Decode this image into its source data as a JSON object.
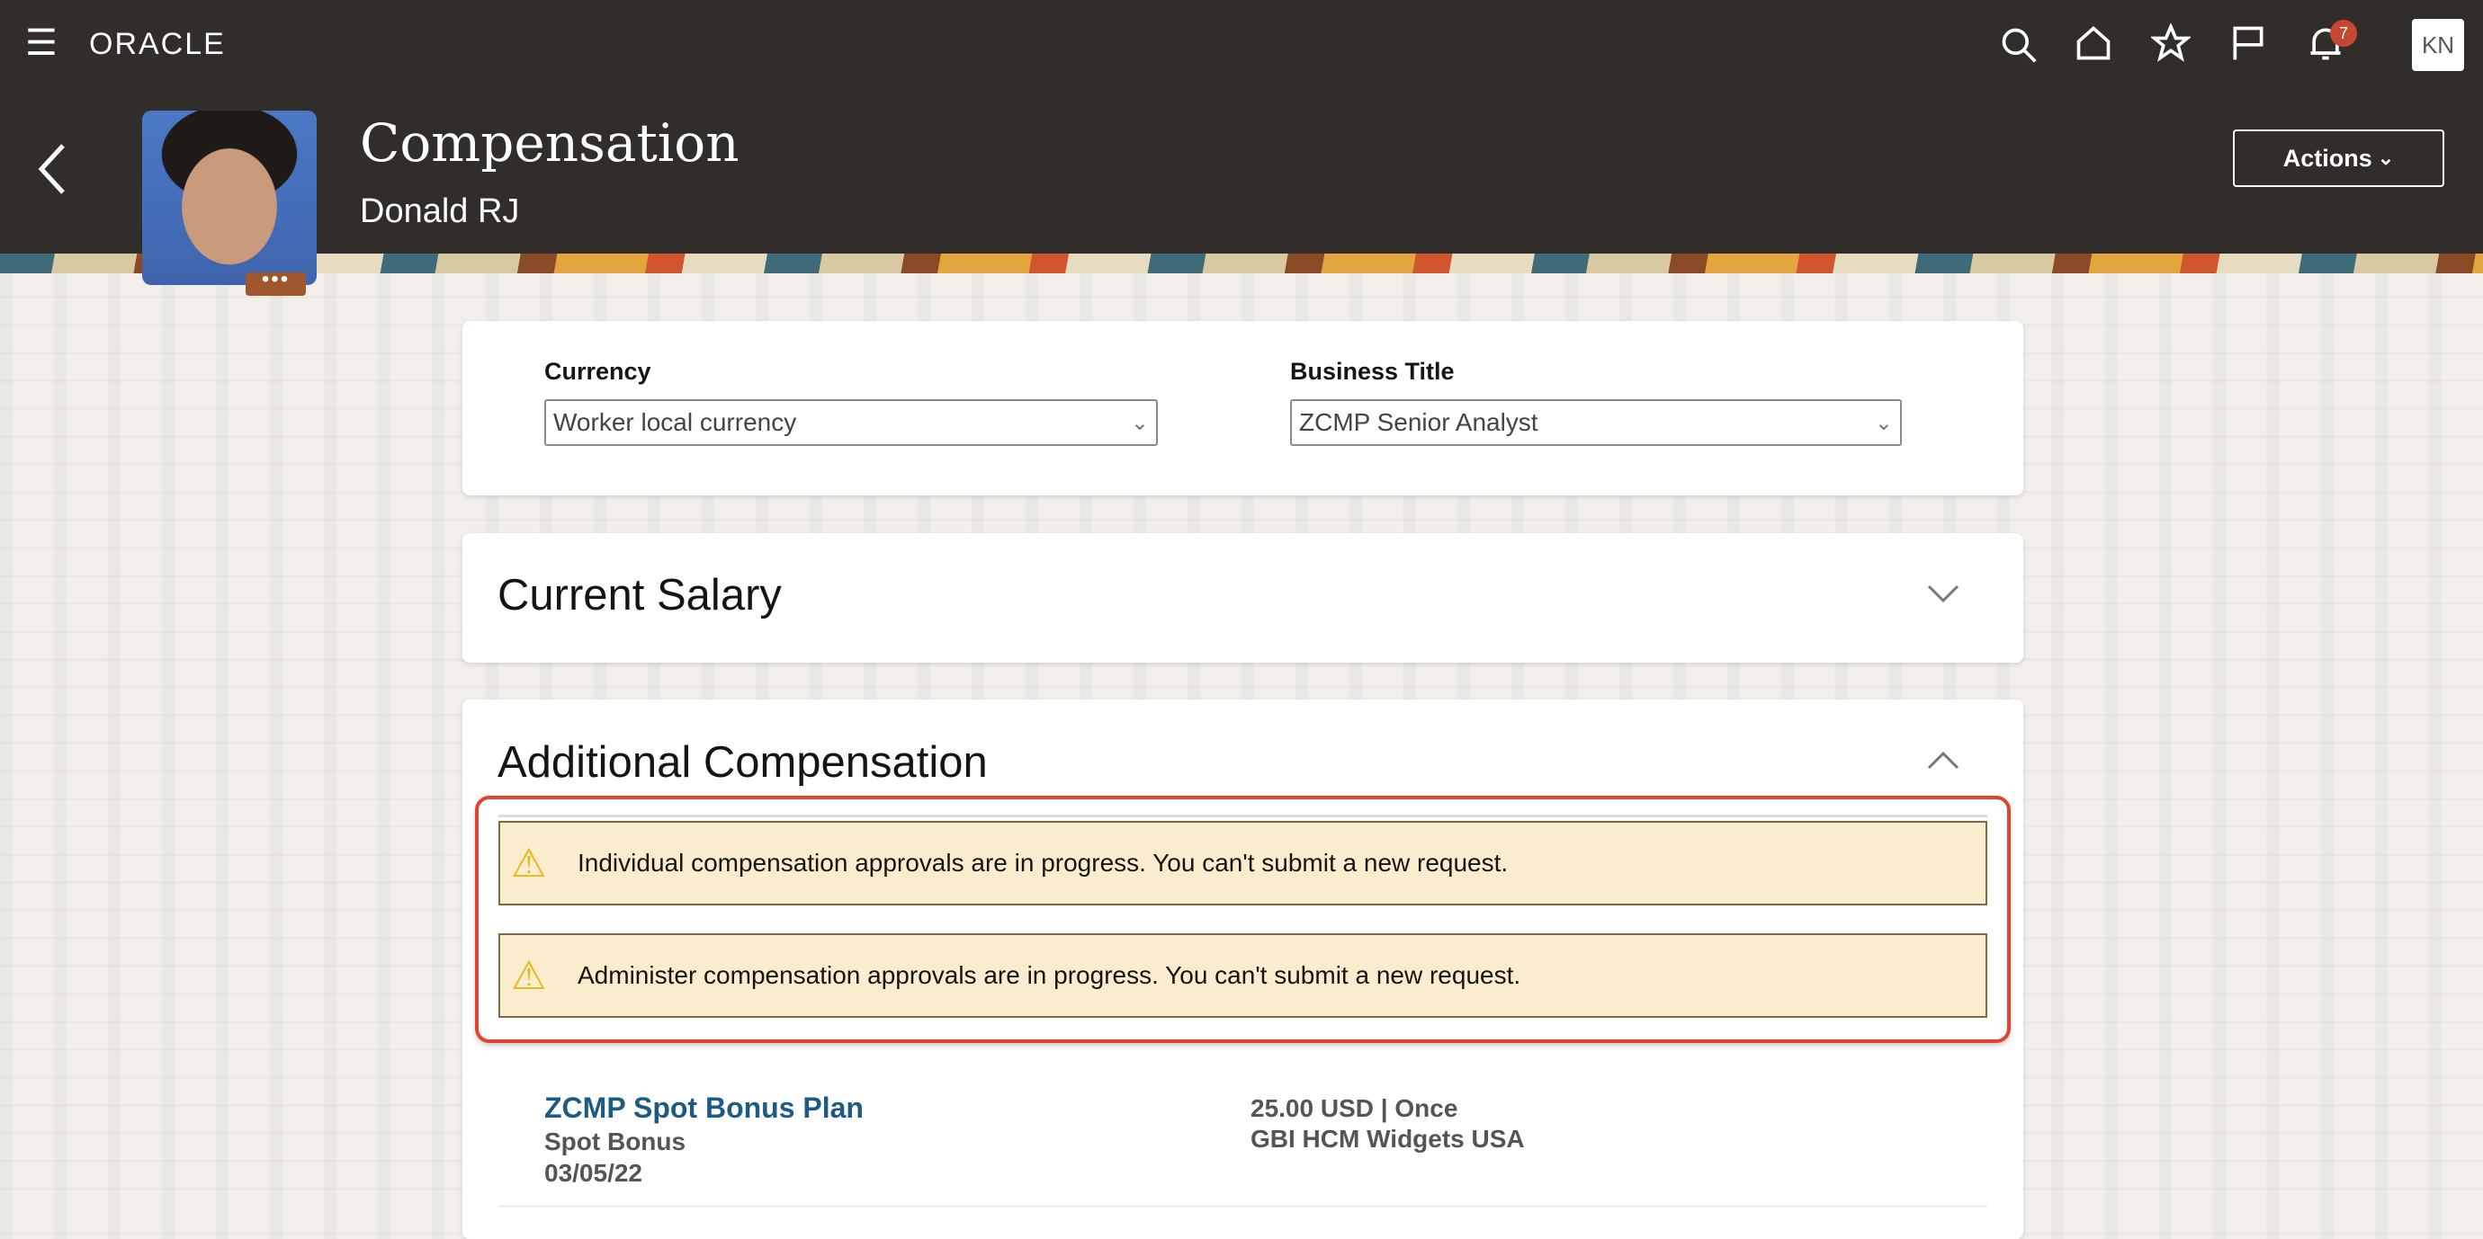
{
  "header": {
    "logo": "ORACLE",
    "title": "Compensation",
    "subtitle": "Donald RJ",
    "actions_label": "Actions",
    "notification_count": "7",
    "user_initials": "KN",
    "more_label": "•••"
  },
  "filters": {
    "currency_label": "Currency",
    "currency_value": "Worker local currency",
    "business_title_label": "Business Title",
    "business_title_value": "ZCMP Senior Analyst"
  },
  "sections": {
    "current_salary": "Current Salary",
    "additional_compensation": "Additional Compensation"
  },
  "warnings": [
    "Individual compensation approvals are in progress. You can't submit a new request.",
    "Administer compensation approvals are in progress. You can't submit a new request."
  ],
  "plans": [
    {
      "name": "ZCMP Spot Bonus Plan",
      "type": "Spot Bonus",
      "date": "03/05/22",
      "amount": "25.00 USD | Once",
      "legal_employer": "GBI HCM Widgets USA"
    }
  ],
  "colors": {
    "header": "#312d2a",
    "link": "#1d5b84",
    "warning_bg": "#f9edcd",
    "highlight": "#e0442f"
  }
}
